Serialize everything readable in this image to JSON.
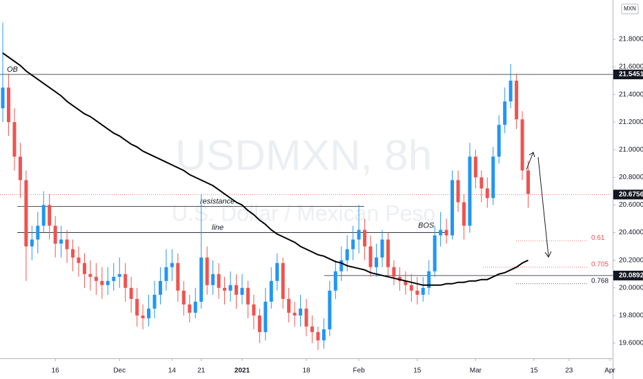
{
  "chart_data": {
    "type": "candlestick",
    "watermark": {
      "symbol": "USDMXN, 8h",
      "description": "U.S. Dollar / Mexican Peso"
    },
    "currency": "MXN",
    "up_color": "#2196f3",
    "down_color": "#ef5350",
    "categories": [
      null,
      null,
      null,
      null,
      null,
      null,
      null,
      null,
      null,
      "16",
      null,
      null,
      null,
      null,
      null,
      null,
      null,
      null,
      null,
      null,
      "Dec",
      null,
      null,
      null,
      null,
      null,
      null,
      null,
      null,
      "14",
      null,
      null,
      null,
      null,
      "21",
      null,
      null,
      null,
      null,
      null,
      null,
      "2021",
      null,
      null,
      null,
      null,
      null,
      null,
      null,
      null,
      null,
      null,
      "18",
      null,
      null,
      null,
      null,
      null,
      null,
      null,
      null,
      "Feb",
      null,
      null,
      null,
      null,
      null,
      null,
      null,
      null,
      null,
      "15",
      null,
      null,
      null,
      null,
      null,
      null,
      null,
      null,
      null,
      "Mar",
      null,
      null,
      null,
      null,
      null,
      null,
      null,
      null,
      null,
      "15",
      null,
      null,
      null,
      null,
      null,
      "23",
      null,
      null,
      null,
      null,
      null,
      null,
      "Apr"
    ],
    "open": [
      21.3,
      21.45,
      21.2,
      20.95,
      20.78,
      20.3,
      20.35,
      20.45,
      20.6,
      20.45,
      20.32,
      20.35,
      20.28,
      20.22,
      20.18,
      20.1,
      20.08,
      20.05,
      20.02,
      20.05,
      20.08,
      20.1,
      20.0,
      19.92,
      19.8,
      19.78,
      19.85,
      19.95,
      20.05,
      20.15,
      20.18,
      19.98,
      19.88,
      19.82,
      19.9,
      20.22,
      20.02,
      20.1,
      20.0,
      19.98,
      20.02,
      19.95,
      20.0,
      19.88,
      19.8,
      19.68,
      19.9,
      20.05,
      20.18,
      19.92,
      19.82,
      19.8,
      19.85,
      19.72,
      19.68,
      19.62,
      19.7,
      19.98,
      20.12,
      20.2,
      20.28,
      20.35,
      20.42,
      20.3,
      20.15,
      20.22,
      20.35,
      20.15,
      20.08,
      20.05,
      20.02,
      19.98,
      19.95,
      20.0,
      20.12,
      20.38,
      20.42,
      20.38,
      20.78,
      20.62,
      20.45,
      20.95,
      20.8,
      20.72,
      20.65,
      20.95,
      21.18,
      21.35,
      21.5,
      21.22,
      20.85,
      null,
      null,
      null,
      null,
      null,
      null,
      null,
      null,
      null,
      null,
      null,
      null,
      null,
      null
    ],
    "high": [
      21.92,
      21.55,
      21.3,
      21.05,
      20.85,
      20.45,
      20.55,
      20.7,
      20.68,
      20.52,
      20.45,
      20.42,
      20.35,
      20.3,
      20.25,
      20.2,
      20.18,
      20.15,
      20.15,
      20.18,
      20.22,
      20.18,
      20.08,
      20.0,
      19.88,
      19.95,
      20.05,
      20.15,
      20.28,
      20.28,
      20.25,
      20.05,
      19.95,
      20.0,
      20.68,
      20.3,
      20.2,
      20.18,
      20.08,
      20.12,
      20.1,
      20.1,
      20.05,
      19.95,
      19.85,
      20.0,
      20.15,
      20.25,
      20.22,
      20.0,
      19.9,
      19.95,
      19.92,
      19.8,
      19.72,
      19.78,
      20.05,
      20.2,
      20.3,
      20.38,
      20.45,
      20.6,
      20.5,
      20.38,
      20.32,
      20.42,
      20.4,
      20.2,
      20.15,
      20.12,
      20.1,
      20.08,
      20.08,
      20.2,
      20.45,
      20.55,
      20.5,
      20.85,
      20.85,
      20.68,
      21.05,
      21.0,
      20.85,
      20.8,
      21.02,
      21.25,
      21.45,
      21.62,
      21.55,
      21.28,
      20.92,
      null,
      null,
      null,
      null,
      null,
      null,
      null,
      null,
      null,
      null,
      null,
      null,
      null,
      null
    ],
    "low": [
      21.2,
      21.1,
      20.85,
      20.65,
      20.05,
      20.2,
      20.25,
      20.4,
      20.35,
      20.22,
      20.22,
      20.18,
      20.12,
      20.08,
      20.0,
      19.98,
      19.95,
      19.92,
      19.95,
      19.98,
      20.0,
      19.9,
      19.82,
      19.72,
      19.7,
      19.72,
      19.78,
      19.88,
      19.98,
      20.05,
      19.9,
      19.8,
      19.75,
      19.78,
      19.85,
      19.95,
      19.95,
      19.92,
      19.88,
      19.9,
      19.85,
      19.88,
      19.78,
      19.7,
      19.6,
      19.62,
      19.85,
      19.98,
      19.85,
      19.75,
      19.72,
      19.72,
      19.65,
      19.6,
      19.55,
      19.56,
      19.65,
      19.92,
      20.05,
      20.12,
      20.2,
      20.25,
      20.2,
      20.08,
      20.08,
      20.15,
      20.08,
      20.02,
      19.98,
      19.95,
      19.9,
      19.88,
      19.9,
      19.95,
      20.08,
      20.3,
      20.32,
      20.35,
      20.55,
      20.35,
      20.4,
      20.72,
      20.62,
      20.58,
      20.6,
      20.9,
      21.12,
      21.3,
      21.15,
      20.78,
      20.58,
      null,
      null,
      null,
      null,
      null,
      null,
      null,
      null,
      null,
      null,
      null,
      null,
      null,
      null
    ],
    "close": [
      21.45,
      21.2,
      20.95,
      20.78,
      20.3,
      20.35,
      20.45,
      20.6,
      20.45,
      20.32,
      20.35,
      20.28,
      20.22,
      20.18,
      20.1,
      20.08,
      20.05,
      20.02,
      20.05,
      20.08,
      20.1,
      20.0,
      19.92,
      19.8,
      19.78,
      19.85,
      19.95,
      20.05,
      20.15,
      20.18,
      19.98,
      19.88,
      19.82,
      19.9,
      20.22,
      20.02,
      20.1,
      20.0,
      19.98,
      20.02,
      19.95,
      20.0,
      19.88,
      19.8,
      19.68,
      19.9,
      20.05,
      20.18,
      19.92,
      19.82,
      19.8,
      19.85,
      19.72,
      19.68,
      19.62,
      19.7,
      19.98,
      20.12,
      20.2,
      20.28,
      20.35,
      20.42,
      20.3,
      20.15,
      20.22,
      20.35,
      20.15,
      20.08,
      20.05,
      20.02,
      19.98,
      19.95,
      20.0,
      20.12,
      20.38,
      20.42,
      20.38,
      20.78,
      20.62,
      20.45,
      20.95,
      20.8,
      20.72,
      20.65,
      20.95,
      21.18,
      21.35,
      21.5,
      21.22,
      20.85,
      20.68,
      null,
      null,
      null,
      null,
      null,
      null,
      null,
      null,
      null,
      null,
      null,
      null,
      null,
      null
    ],
    "moving_average": {
      "color": "#000000",
      "values": [
        21.7,
        21.67,
        21.64,
        21.61,
        21.57,
        21.54,
        21.51,
        21.48,
        21.45,
        21.42,
        21.39,
        21.35,
        21.32,
        21.29,
        21.26,
        21.24,
        21.21,
        21.18,
        21.15,
        21.12,
        21.1,
        21.07,
        21.04,
        21.02,
        20.99,
        20.97,
        20.95,
        20.93,
        20.91,
        20.89,
        20.87,
        20.85,
        20.82,
        20.8,
        20.78,
        20.76,
        20.74,
        20.71,
        20.68,
        20.65,
        20.62,
        20.6,
        20.56,
        20.53,
        20.49,
        20.46,
        20.42,
        20.39,
        20.37,
        20.35,
        20.33,
        20.3,
        20.28,
        20.26,
        20.24,
        20.23,
        20.21,
        20.19,
        20.18,
        20.16,
        20.15,
        20.14,
        20.13,
        20.11,
        20.1,
        20.09,
        20.08,
        20.07,
        20.06,
        20.05,
        20.04,
        20.03,
        20.02,
        20.02,
        20.02,
        20.02,
        20.03,
        20.03,
        20.04,
        20.04,
        20.05,
        20.05,
        20.06,
        20.06,
        20.08,
        20.1,
        20.11,
        20.13,
        20.15,
        20.18,
        20.2,
        null,
        null,
        null,
        null,
        null,
        null,
        null,
        null,
        null,
        null,
        null,
        null,
        null,
        null
      ]
    },
    "ylim": [
      19.49,
      22.084
    ],
    "yticks": [
      {
        "value": 19.6,
        "label": "19.60000"
      },
      {
        "value": 19.8,
        "label": "19.80000"
      },
      {
        "value": 20.0,
        "label": "20.00000"
      },
      {
        "value": 20.2,
        "label": "20.20000"
      },
      {
        "value": 20.4,
        "label": "20.40000"
      },
      {
        "value": 20.6,
        "label": "20.60000"
      },
      {
        "value": 20.8,
        "label": "20.80000"
      },
      {
        "value": 21.0,
        "label": "21.00000"
      },
      {
        "value": 21.2,
        "label": "21.20000"
      },
      {
        "value": 21.4,
        "label": "21.40000"
      },
      {
        "value": 21.6,
        "label": "21.60000"
      },
      {
        "value": 21.8,
        "label": "21.80000"
      }
    ],
    "price_labels": [
      {
        "value": 21.54519,
        "label": "21.54519"
      },
      {
        "value": 20.67562,
        "label": "20.67562"
      },
      {
        "value": 20.08923,
        "label": "20.08923"
      }
    ],
    "horizontal_lines": [
      {
        "label": "OB",
        "value": 21.54519
      },
      {
        "label": "resistance",
        "value": 20.59
      },
      {
        "label": "line",
        "value": 20.4
      }
    ],
    "bos_label": "BOS",
    "fib_levels": [
      {
        "label": "0.61",
        "value": 20.34,
        "color": "#ef5350"
      },
      {
        "label": "0.705",
        "value": 20.15,
        "color": "#ef5350"
      },
      {
        "label": "0.768",
        "value": 20.03,
        "color": "#131722"
      }
    ]
  }
}
